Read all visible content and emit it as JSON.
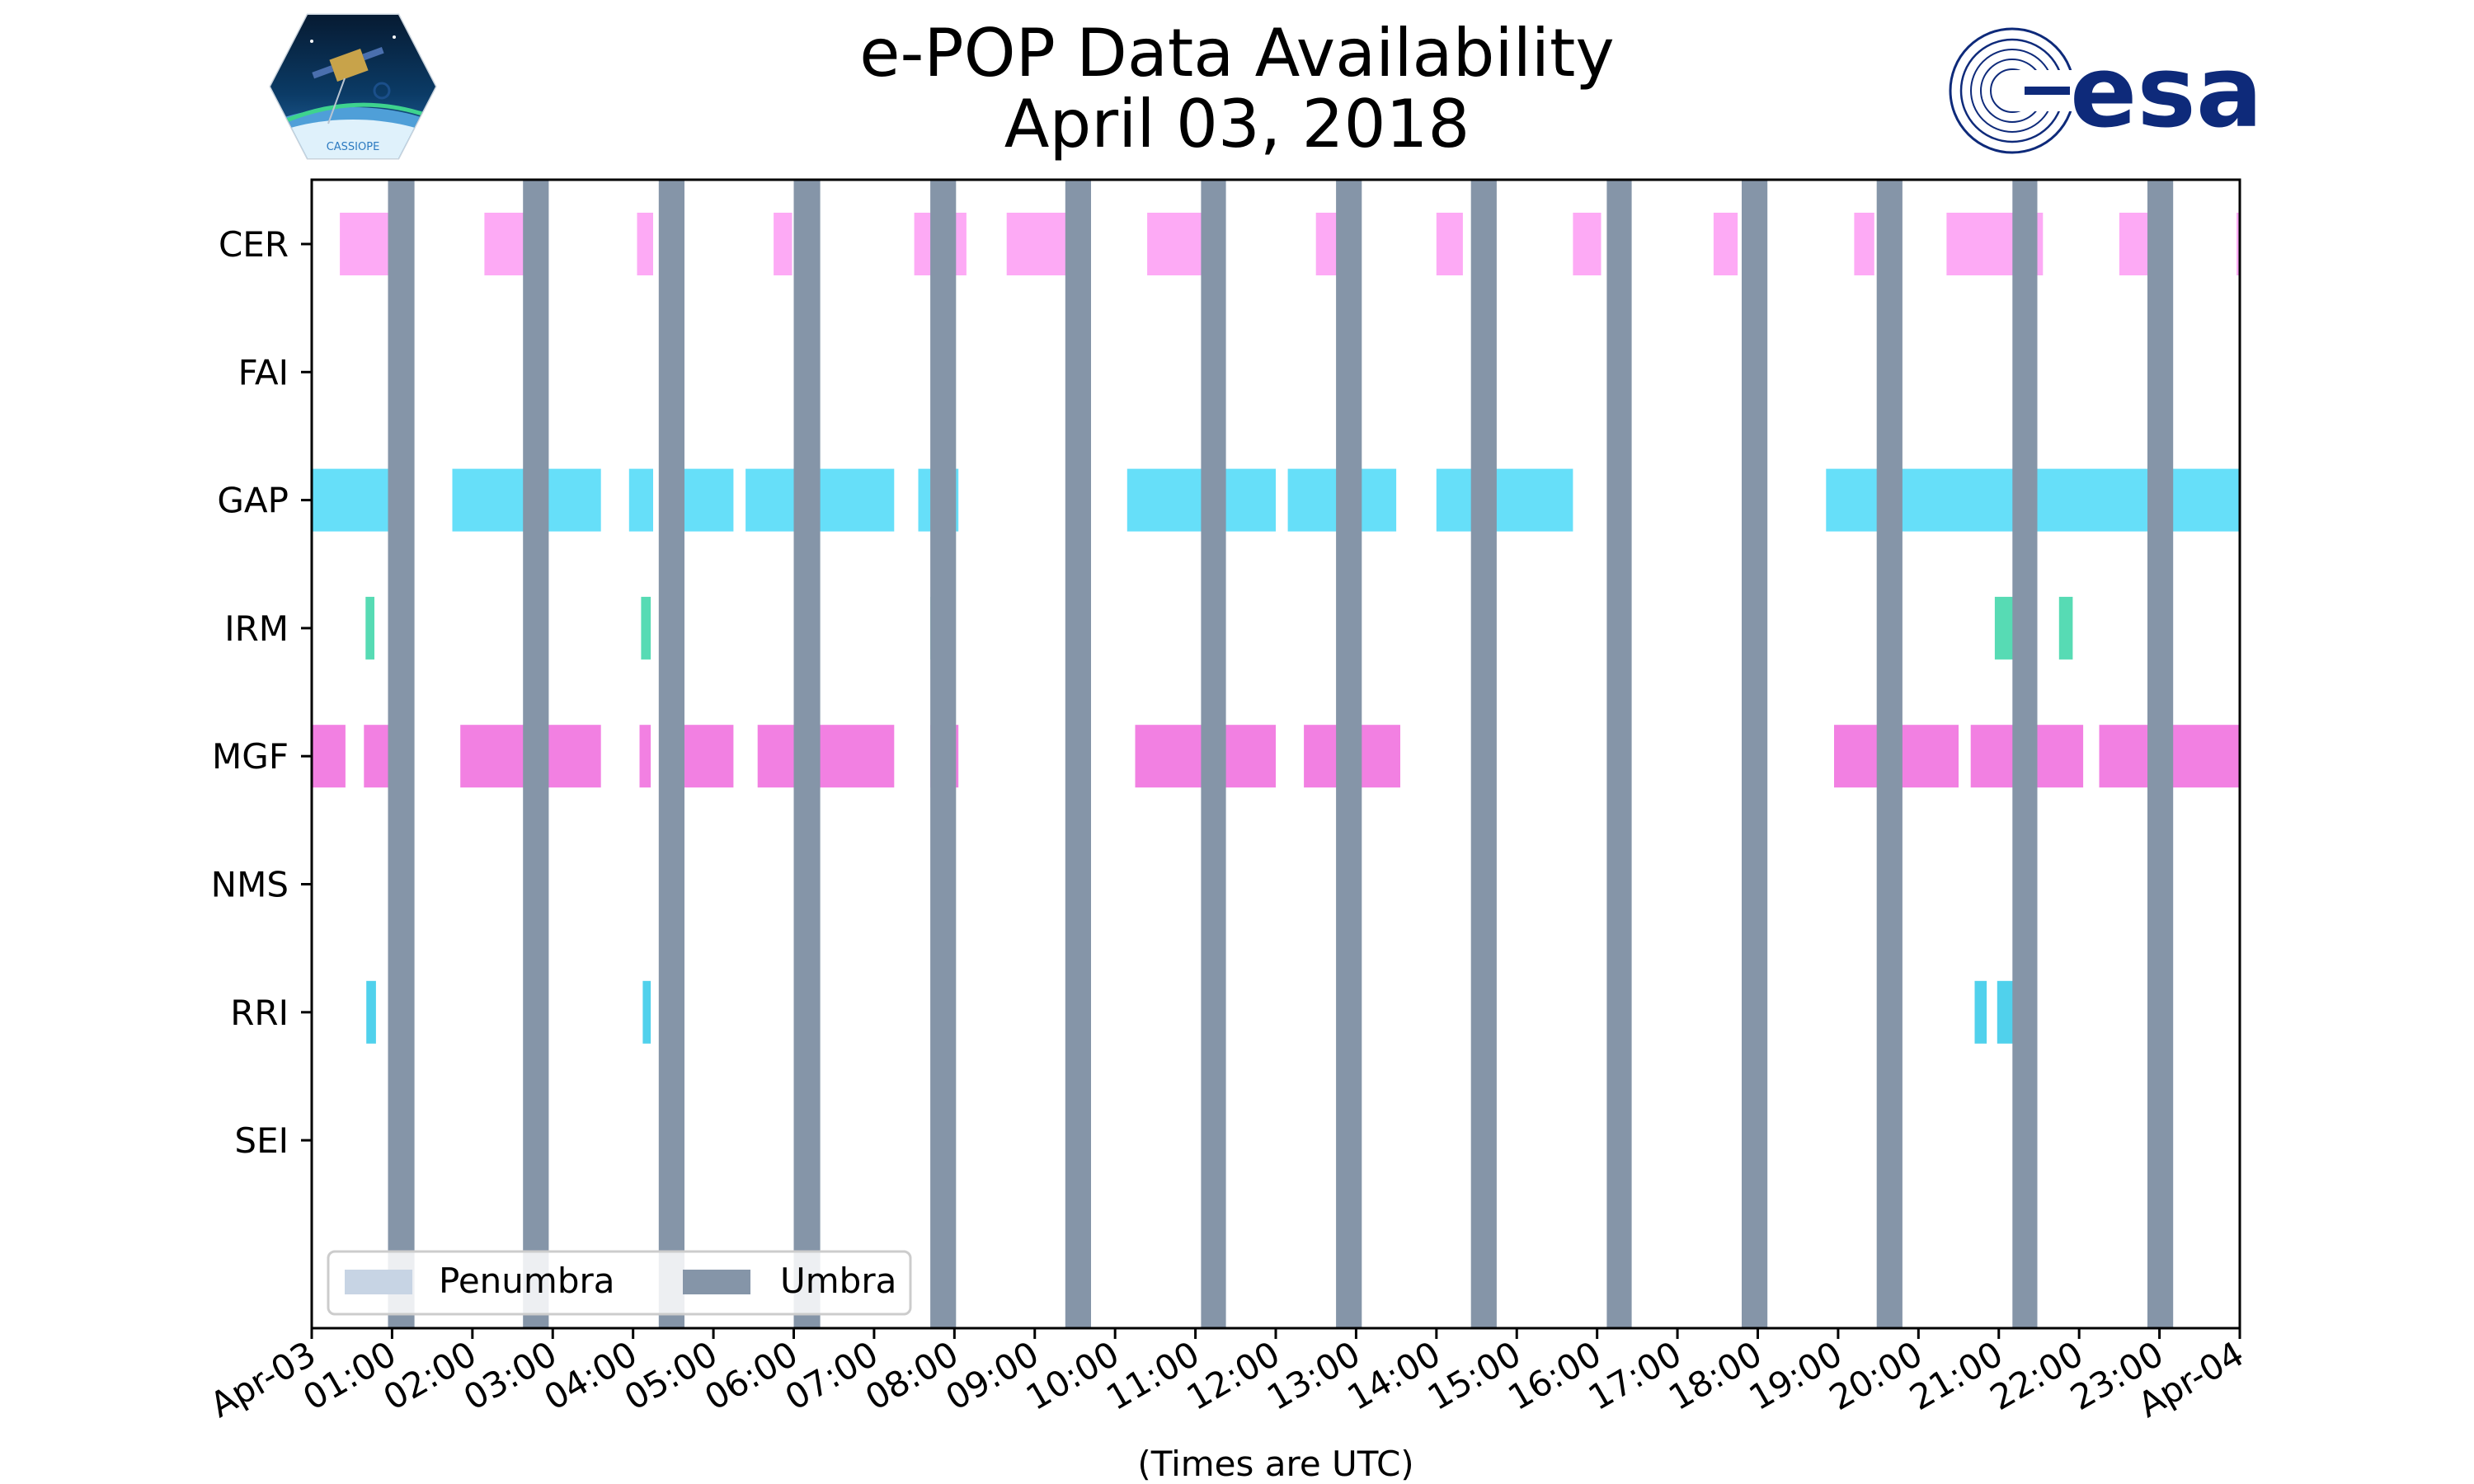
{
  "title": "e-POP Data Availability",
  "subtitle": "April 03, 2018",
  "logos": {
    "left": {
      "name": "CASSIOPE mission patch",
      "text": "CASSIOPE"
    },
    "right": {
      "name": "ESA logo",
      "text": "esa",
      "color": "#0e2a7a"
    }
  },
  "chart_data": {
    "type": "timeline",
    "title": "e-POP Data Availability",
    "subtitle": "April 03, 2018",
    "xlabel": "(Times are UTC)",
    "xlim_hours": [
      0,
      24
    ],
    "x_ticks": [
      "Apr-03",
      "01:00",
      "02:00",
      "03:00",
      "04:00",
      "05:00",
      "06:00",
      "07:00",
      "08:00",
      "09:00",
      "10:00",
      "11:00",
      "12:00",
      "13:00",
      "14:00",
      "15:00",
      "16:00",
      "17:00",
      "18:00",
      "19:00",
      "20:00",
      "21:00",
      "22:00",
      "23:00",
      "Apr-04"
    ],
    "instruments": [
      "CER",
      "FAI",
      "GAP",
      "IRM",
      "MGF",
      "NMS",
      "RRI",
      "SEI"
    ],
    "colors": {
      "CER": "#fc8ef2",
      "GAP": "#33d4f7",
      "IRM": "#1fcf9b",
      "MGF": "#ee55d8",
      "RRI": "#16c2e6",
      "umbra": "#8595a8",
      "penumbra": "#c7d4e4"
    },
    "intervals": {
      "CER": [
        [
          0.35,
          0.98
        ],
        [
          2.15,
          2.68
        ],
        [
          4.05,
          4.25
        ],
        [
          5.75,
          5.98
        ],
        [
          7.5,
          8.15
        ],
        [
          8.65,
          9.42
        ],
        [
          10.4,
          11.3
        ],
        [
          12.5,
          12.95
        ],
        [
          14.0,
          14.33
        ],
        [
          15.7,
          16.05
        ],
        [
          17.45,
          17.75
        ],
        [
          19.2,
          19.45
        ],
        [
          20.35,
          21.55
        ],
        [
          22.5,
          23.1
        ],
        [
          23.96,
          24.0
        ]
      ],
      "FAI": [],
      "GAP": [
        [
          0.0,
          0.95
        ],
        [
          1.75,
          3.6
        ],
        [
          3.95,
          4.25
        ],
        [
          4.45,
          5.25
        ],
        [
          5.4,
          7.25
        ],
        [
          7.55,
          8.05
        ],
        [
          10.15,
          12.0
        ],
        [
          12.15,
          13.5
        ],
        [
          14.0,
          15.7
        ],
        [
          18.85,
          24.0
        ]
      ],
      "IRM": [
        [
          0.67,
          0.78
        ],
        [
          4.1,
          4.22
        ],
        [
          7.7,
          7.88
        ],
        [
          20.95,
          21.25
        ],
        [
          21.75,
          21.92
        ]
      ],
      "MGF": [
        [
          0.0,
          0.42
        ],
        [
          0.65,
          0.95
        ],
        [
          1.85,
          3.6
        ],
        [
          4.08,
          4.22
        ],
        [
          4.6,
          5.25
        ],
        [
          5.55,
          7.25
        ],
        [
          7.7,
          8.05
        ],
        [
          10.25,
          12.0
        ],
        [
          12.35,
          13.55
        ],
        [
          18.95,
          20.5
        ],
        [
          20.65,
          22.05
        ],
        [
          22.25,
          24.0
        ]
      ],
      "NMS": [],
      "RRI": [
        [
          0.68,
          0.8
        ],
        [
          4.12,
          4.22
        ],
        [
          7.75,
          7.9
        ],
        [
          20.7,
          20.85
        ],
        [
          20.98,
          21.18
        ]
      ],
      "SEI": []
    },
    "umbra": [
      [
        0.95,
        1.28
      ],
      [
        2.63,
        2.95
      ],
      [
        4.32,
        4.64
      ],
      [
        6.0,
        6.33
      ],
      [
        7.7,
        8.02
      ],
      [
        9.38,
        9.7
      ],
      [
        11.07,
        11.38
      ],
      [
        12.75,
        13.07
      ],
      [
        14.43,
        14.75
      ],
      [
        16.12,
        16.43
      ],
      [
        17.8,
        18.12
      ],
      [
        19.48,
        19.8
      ],
      [
        21.17,
        21.48
      ],
      [
        22.85,
        23.17
      ]
    ],
    "penumbra": [],
    "legend": {
      "position": "lower-left",
      "entries": [
        "Penumbra",
        "Umbra"
      ]
    }
  }
}
